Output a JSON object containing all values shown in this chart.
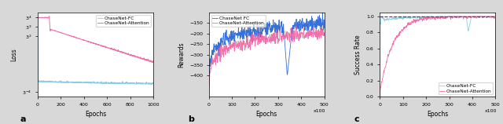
{
  "fig_width": 6.4,
  "fig_height": 1.58,
  "dpi": 100,
  "background_color": "#d8d8d8",
  "axes_background": "#ffffff",
  "subplot_a": {
    "xlabel": "Epochs",
    "ylabel": "Loss",
    "label_letter": "a",
    "xlim": [
      0,
      1000
    ],
    "ylim_log": [
      0.007,
      150
    ],
    "yticks": [
      "$3^4$",
      "$3^3$",
      "$3^2$",
      "$3^{-4}$"
    ],
    "ytick_vals": [
      81,
      27,
      9,
      0.012
    ],
    "legend": [
      "ChaseNet-FC",
      "ChaseNet-Attention"
    ],
    "fc_color": "#7ec8e3",
    "att_color": "#f060a0"
  },
  "subplot_b": {
    "xlabel": "Epochs",
    "ylabel": "Rewards",
    "label_letter": "b",
    "xlim": [
      0,
      500
    ],
    "ylim": [
      -500,
      -100
    ],
    "xlabel_suffix": "x100",
    "yticks": [
      -150,
      -200,
      -250,
      -300,
      -350,
      -400
    ],
    "legend": [
      "ChaseNet FC",
      "ChaseNet-Attention"
    ],
    "fc_color": "#2060d8",
    "att_color": "#f060a0"
  },
  "subplot_c": {
    "xlabel": "Epochs",
    "ylabel": "Success Rate",
    "label_letter": "c",
    "xlim": [
      0,
      500
    ],
    "ylim": [
      0,
      1.05
    ],
    "xlabel_suffix": "x100",
    "yticks": [
      0.0,
      0.2,
      0.4,
      0.6,
      0.8,
      1.0
    ],
    "legend": [
      "ChaseNet-FC",
      "ChaseNet-Attention"
    ],
    "fc_color": "#7ec8e3",
    "att_color": "#f060a0",
    "hline_y": 1.0,
    "hline_color": "#dd0000",
    "hline_style": "--"
  }
}
